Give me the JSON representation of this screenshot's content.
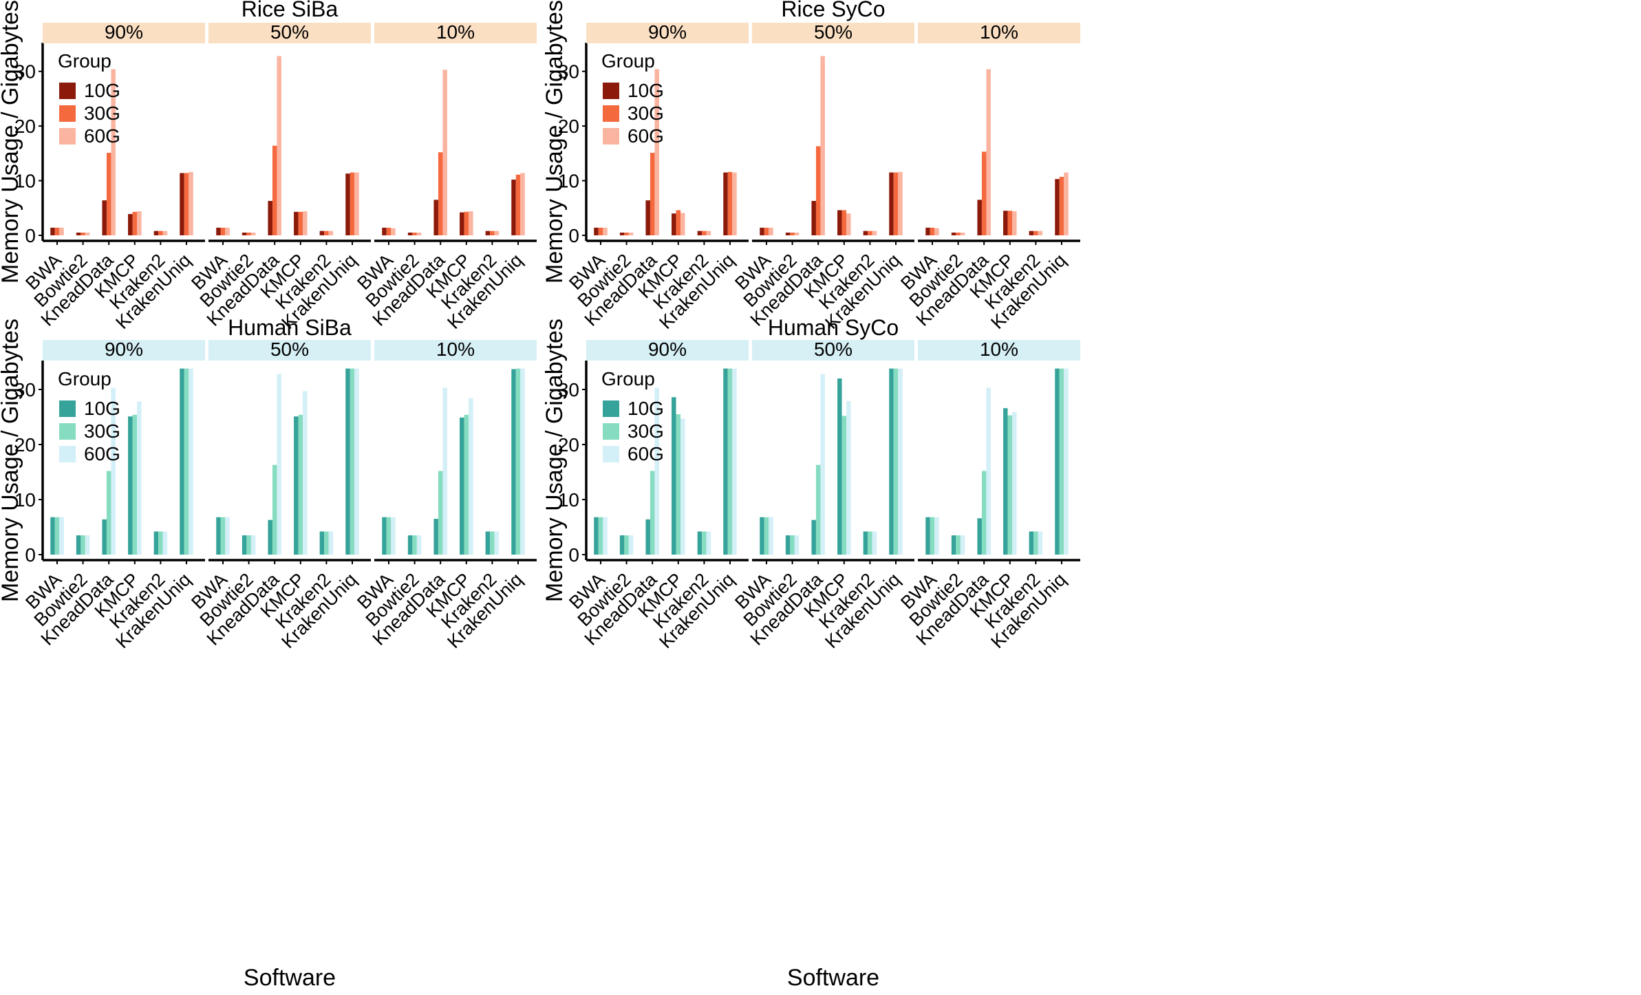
{
  "figure": {
    "x_axis_label": "Software",
    "y_axis_label": "Memory Usage / Gigabytes"
  },
  "chart_data": [
    {
      "type": "bar",
      "title": "Rice SiBa",
      "xlabel": "",
      "ylabel": "Memory Usage / Gigabytes",
      "ylim": [
        0,
        35
      ],
      "yticks": [
        0,
        10,
        20,
        30
      ],
      "grid": false,
      "legend": {
        "title": "Group",
        "position": "top-left",
        "entries": [
          "10G",
          "30G",
          "60G"
        ]
      },
      "colors": [
        "#8b1a0a",
        "#f5693e",
        "#fbb4a0"
      ],
      "facet_strip_color": "#fbdfc3",
      "categories": [
        "BWA",
        "Bowtie2",
        "KneadData",
        "KMCP",
        "Kraken2",
        "KrakenUniq"
      ],
      "facets": [
        {
          "label": "90%",
          "series": [
            {
              "name": "10G",
              "values": [
                1.4,
                0.5,
                6.4,
                3.9,
                0.8,
                11.4
              ]
            },
            {
              "name": "30G",
              "values": [
                1.4,
                0.5,
                15.1,
                4.3,
                0.8,
                11.4
              ]
            },
            {
              "name": "60G",
              "values": [
                1.4,
                0.5,
                30.4,
                4.4,
                0.8,
                11.6
              ]
            }
          ]
        },
        {
          "label": "50%",
          "series": [
            {
              "name": "10G",
              "values": [
                1.4,
                0.5,
                6.3,
                4.3,
                0.8,
                11.3
              ]
            },
            {
              "name": "30G",
              "values": [
                1.4,
                0.5,
                16.4,
                4.3,
                0.8,
                11.5
              ]
            },
            {
              "name": "60G",
              "values": [
                1.4,
                0.5,
                32.8,
                4.4,
                0.8,
                11.5
              ]
            }
          ]
        },
        {
          "label": "10%",
          "series": [
            {
              "name": "10G",
              "values": [
                1.4,
                0.5,
                6.5,
                4.2,
                0.8,
                10.2
              ]
            },
            {
              "name": "30G",
              "values": [
                1.4,
                0.5,
                15.2,
                4.3,
                0.8,
                11.1
              ]
            },
            {
              "name": "60G",
              "values": [
                1.3,
                0.5,
                30.3,
                4.4,
                0.8,
                11.4
              ]
            }
          ]
        }
      ]
    },
    {
      "type": "bar",
      "title": "Rice SyCo",
      "xlabel": "",
      "ylabel": "Memory Usage / Gigabytes",
      "ylim": [
        0,
        35
      ],
      "yticks": [
        0,
        10,
        20,
        30
      ],
      "grid": false,
      "legend": {
        "title": "Group",
        "position": "top-left",
        "entries": [
          "10G",
          "30G",
          "60G"
        ]
      },
      "colors": [
        "#8b1a0a",
        "#f5693e",
        "#fbb4a0"
      ],
      "facet_strip_color": "#fbdfc3",
      "categories": [
        "BWA",
        "Bowtie2",
        "KneadData",
        "KMCP",
        "Kraken2",
        "KrakenUniq"
      ],
      "facets": [
        {
          "label": "90%",
          "series": [
            {
              "name": "10G",
              "values": [
                1.4,
                0.5,
                6.4,
                4.0,
                0.8,
                11.5
              ]
            },
            {
              "name": "30G",
              "values": [
                1.4,
                0.5,
                15.1,
                4.6,
                0.8,
                11.6
              ]
            },
            {
              "name": "60G",
              "values": [
                1.4,
                0.5,
                30.4,
                4.1,
                0.8,
                11.5
              ]
            }
          ]
        },
        {
          "label": "50%",
          "series": [
            {
              "name": "10G",
              "values": [
                1.4,
                0.5,
                6.3,
                4.6,
                0.8,
                11.5
              ]
            },
            {
              "name": "30G",
              "values": [
                1.4,
                0.5,
                16.3,
                4.6,
                0.8,
                11.5
              ]
            },
            {
              "name": "60G",
              "values": [
                1.4,
                0.5,
                32.8,
                4.0,
                0.8,
                11.6
              ]
            }
          ]
        },
        {
          "label": "10%",
          "series": [
            {
              "name": "10G",
              "values": [
                1.4,
                0.5,
                6.5,
                4.5,
                0.8,
                10.3
              ]
            },
            {
              "name": "30G",
              "values": [
                1.4,
                0.5,
                15.3,
                4.5,
                0.8,
                10.7
              ]
            },
            {
              "name": "60G",
              "values": [
                1.3,
                0.5,
                30.4,
                4.4,
                0.8,
                11.5
              ]
            }
          ]
        }
      ]
    },
    {
      "type": "bar",
      "title": "Human SiBa",
      "xlabel": "Software",
      "ylabel": "Memory Usage / Gigabytes",
      "ylim": [
        0,
        35
      ],
      "yticks": [
        0,
        10,
        20,
        30
      ],
      "grid": false,
      "legend": {
        "title": "Group",
        "position": "top-left",
        "entries": [
          "10G",
          "30G",
          "60G"
        ]
      },
      "colors": [
        "#35a39a",
        "#86dcc0",
        "#d3eff7"
      ],
      "facet_strip_color": "#d6f0f5",
      "categories": [
        "BWA",
        "Bowtie2",
        "KneadData",
        "KMCP",
        "Kraken2",
        "KrakenUniq"
      ],
      "facets": [
        {
          "label": "90%",
          "series": [
            {
              "name": "10G",
              "values": [
                6.8,
                3.5,
                6.4,
                25.1,
                4.2,
                33.8
              ]
            },
            {
              "name": "30G",
              "values": [
                6.8,
                3.5,
                15.2,
                25.4,
                4.2,
                33.8
              ]
            },
            {
              "name": "60G",
              "values": [
                6.8,
                3.5,
                30.3,
                27.8,
                4.2,
                33.8
              ]
            }
          ]
        },
        {
          "label": "50%",
          "series": [
            {
              "name": "10G",
              "values": [
                6.8,
                3.5,
                6.3,
                25.1,
                4.2,
                33.8
              ]
            },
            {
              "name": "30G",
              "values": [
                6.8,
                3.5,
                16.3,
                25.4,
                4.2,
                33.8
              ]
            },
            {
              "name": "60G",
              "values": [
                6.8,
                3.5,
                32.8,
                29.7,
                4.2,
                33.8
              ]
            }
          ]
        },
        {
          "label": "10%",
          "series": [
            {
              "name": "10G",
              "values": [
                6.8,
                3.5,
                6.5,
                24.9,
                4.2,
                33.7
              ]
            },
            {
              "name": "30G",
              "values": [
                6.8,
                3.5,
                15.2,
                25.4,
                4.2,
                33.8
              ]
            },
            {
              "name": "60G",
              "values": [
                6.8,
                3.5,
                30.3,
                28.4,
                4.2,
                33.8
              ]
            }
          ]
        }
      ]
    },
    {
      "type": "bar",
      "title": "Human SyCo",
      "xlabel": "Software",
      "ylabel": "Memory Usage / Gigabytes",
      "ylim": [
        0,
        35
      ],
      "yticks": [
        0,
        10,
        20,
        30
      ],
      "grid": false,
      "legend": {
        "title": "Group",
        "position": "top-left",
        "entries": [
          "10G",
          "30G",
          "60G"
        ]
      },
      "colors": [
        "#35a39a",
        "#86dcc0",
        "#d3eff7"
      ],
      "facet_strip_color": "#d6f0f5",
      "categories": [
        "BWA",
        "Bowtie2",
        "KneadData",
        "KMCP",
        "Kraken2",
        "KrakenUniq"
      ],
      "facets": [
        {
          "label": "90%",
          "series": [
            {
              "name": "10G",
              "values": [
                6.8,
                3.5,
                6.4,
                28.6,
                4.2,
                33.8
              ]
            },
            {
              "name": "30G",
              "values": [
                6.8,
                3.5,
                15.2,
                25.5,
                4.2,
                33.8
              ]
            },
            {
              "name": "60G",
              "values": [
                6.8,
                3.5,
                30.3,
                24.7,
                4.2,
                33.8
              ]
            }
          ]
        },
        {
          "label": "50%",
          "series": [
            {
              "name": "10G",
              "values": [
                6.8,
                3.5,
                6.3,
                32.0,
                4.2,
                33.8
              ]
            },
            {
              "name": "30G",
              "values": [
                6.8,
                3.5,
                16.3,
                25.2,
                4.2,
                33.8
              ]
            },
            {
              "name": "60G",
              "values": [
                6.8,
                3.5,
                32.8,
                27.9,
                4.2,
                33.8
              ]
            }
          ]
        },
        {
          "label": "10%",
          "series": [
            {
              "name": "10G",
              "values": [
                6.8,
                3.5,
                6.6,
                26.6,
                4.2,
                33.8
              ]
            },
            {
              "name": "30G",
              "values": [
                6.8,
                3.5,
                15.2,
                25.3,
                4.2,
                33.8
              ]
            },
            {
              "name": "60G",
              "values": [
                6.8,
                3.5,
                30.3,
                25.9,
                4.2,
                33.8
              ]
            }
          ]
        }
      ]
    }
  ]
}
